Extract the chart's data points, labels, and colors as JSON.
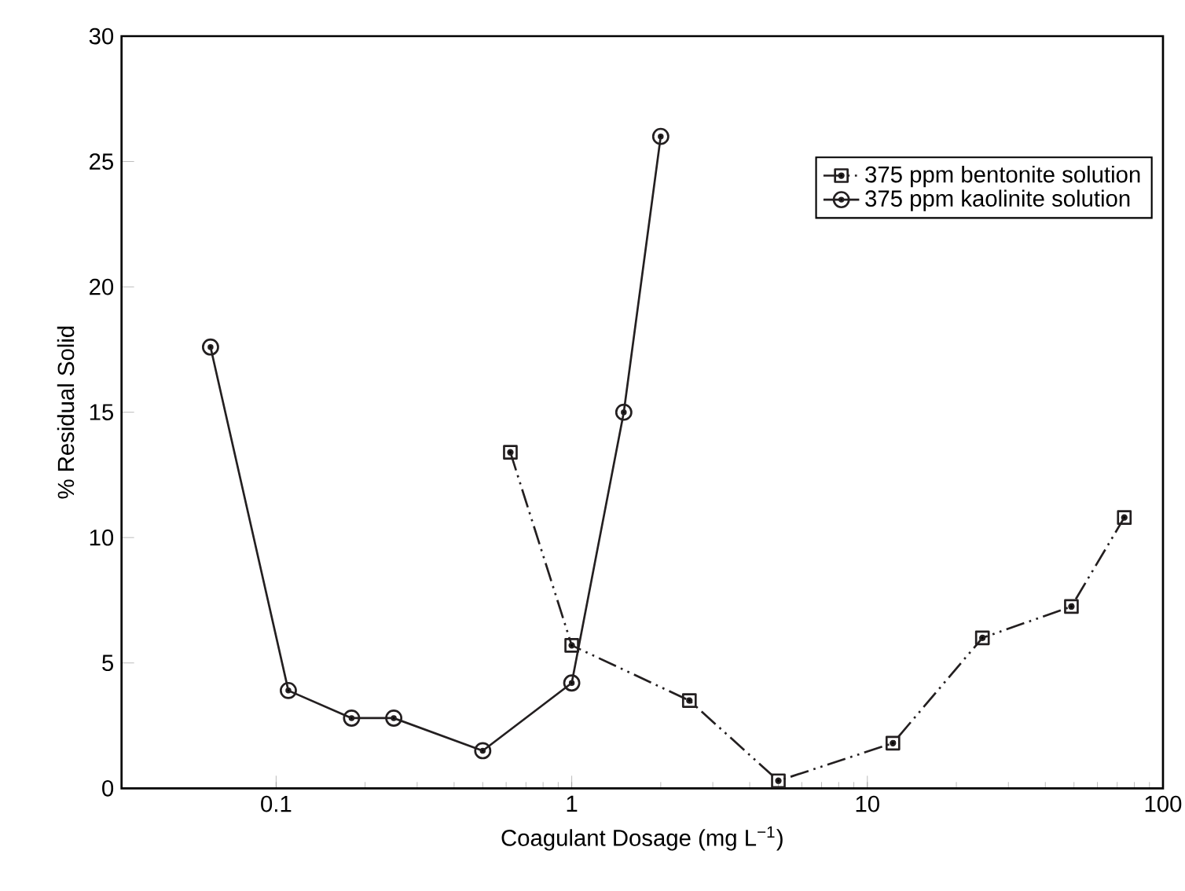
{
  "chart_data": {
    "type": "line",
    "xlabel": "Coagulant Dosage (mg L$^{−1}$)",
    "ylabel": "% Residual Solid",
    "log": "x",
    "xlim": [
      0.03,
      100
    ],
    "xticks": [
      0.1,
      1,
      10,
      100
    ],
    "ylim": [
      0,
      30
    ],
    "yticks": [
      0,
      5,
      10,
      15,
      20,
      25,
      30
    ],
    "grid": false,
    "legend": "top right",
    "series": [
      {
        "name": "375 ppm bentonite solution",
        "color": "#231f20",
        "marker": "square",
        "line_style": "dashed",
        "x": [
          0.62,
          1,
          2.5,
          5,
          12.2,
          24.5,
          49,
          74
        ],
        "values": [
          13.4,
          5.7,
          3.5,
          0.3,
          1.8,
          6.0,
          7.25,
          10.8
        ]
      },
      {
        "name": "375 ppm kaolinite solution",
        "color": "#231f20",
        "marker": "circle",
        "line_style": "solid",
        "x": [
          0.06,
          0.11,
          0.18,
          0.25,
          0.5,
          1,
          1.5,
          2
        ],
        "values": [
          17.6,
          3.9,
          2.8,
          2.8,
          1.5,
          4.2,
          15,
          26
        ]
      }
    ]
  }
}
